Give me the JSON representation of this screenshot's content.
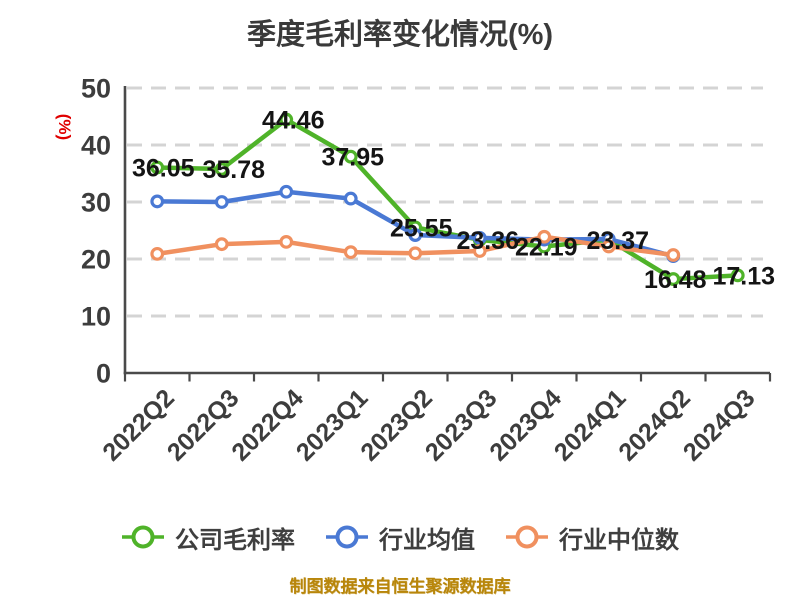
{
  "source_note": "制图数据来自恒生聚源数据库",
  "colors": {
    "company_green": "#4fb329",
    "industry_avg_blue": "#4a79d4",
    "industry_median_orange": "#f0905f",
    "axis": "#4a4a4a",
    "grid": "#d4d4d4",
    "tick_text": "#3d3d3d",
    "data_label": "#141414",
    "title_text": "#3a3a3a",
    "y_unit_red": "#e00000",
    "footer_gold": "#b8860b",
    "legend_text": "#3f3f3f",
    "marker_fill": "#ffffff"
  },
  "chart_data": {
    "type": "line",
    "title": "季度毛利率变化情况(%)",
    "xlabel": "",
    "ylabel": "(%)",
    "categories": [
      "2022Q2",
      "2022Q3",
      "2022Q4",
      "2023Q1",
      "2023Q2",
      "2023Q3",
      "2023Q4",
      "2024Q1",
      "2024Q2",
      "2024Q3"
    ],
    "series": [
      {
        "name": "公司毛利率",
        "color": "#4fb329",
        "labeled": true,
        "values": [
          36.05,
          35.78,
          44.46,
          37.95,
          25.55,
          23.36,
          22.19,
          23.37,
          16.48,
          17.13
        ]
      },
      {
        "name": "行业均值",
        "color": "#4a79d4",
        "labeled": false,
        "values": [
          30.1,
          30.0,
          31.8,
          30.6,
          24.2,
          23.7,
          23.4,
          23.5,
          20.5
        ]
      },
      {
        "name": "行业中位数",
        "color": "#f0905f",
        "labeled": false,
        "values": [
          20.9,
          22.6,
          23.0,
          21.2,
          21.0,
          21.4,
          23.9,
          22.2,
          20.7
        ]
      }
    ],
    "ylim": [
      0,
      50
    ],
    "yticks": [
      0,
      10,
      20,
      30,
      40,
      50
    ],
    "grid": true,
    "grid_style": "dashed",
    "marker": "circle-hollow",
    "legend_position": "bottom"
  }
}
